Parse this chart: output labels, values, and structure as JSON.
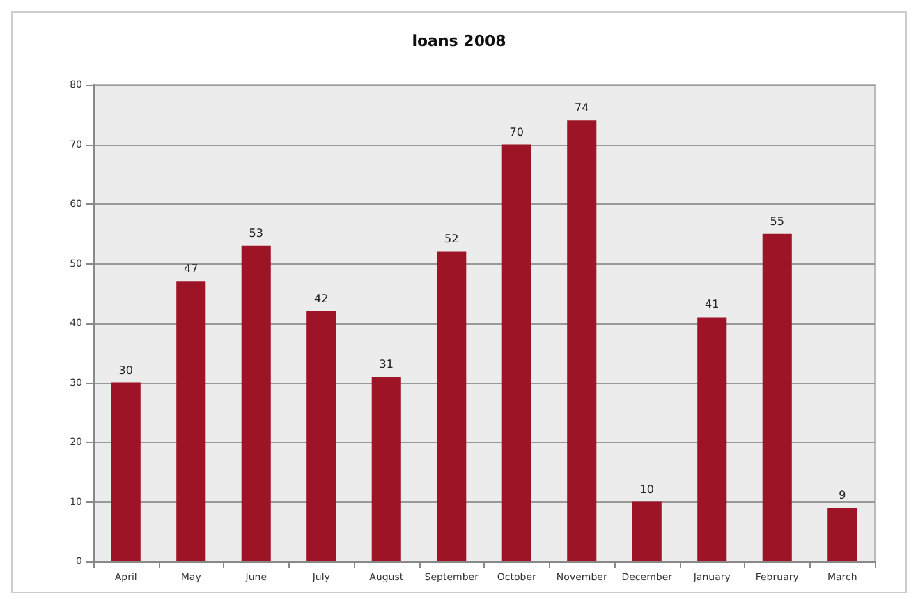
{
  "chart_data": {
    "type": "bar",
    "title": "loans 2008",
    "categories": [
      "April",
      "May",
      "June",
      "July",
      "August",
      "September",
      "October",
      "November",
      "December",
      "January",
      "February",
      "March"
    ],
    "values": [
      30,
      47,
      53,
      42,
      31,
      52,
      70,
      74,
      10,
      41,
      55,
      9
    ],
    "color": "#9c1426",
    "ylim": [
      0,
      80
    ],
    "yticks": [
      0,
      10,
      20,
      30,
      40,
      50,
      60,
      70,
      80
    ],
    "grid": "y",
    "data_labels": true
  }
}
